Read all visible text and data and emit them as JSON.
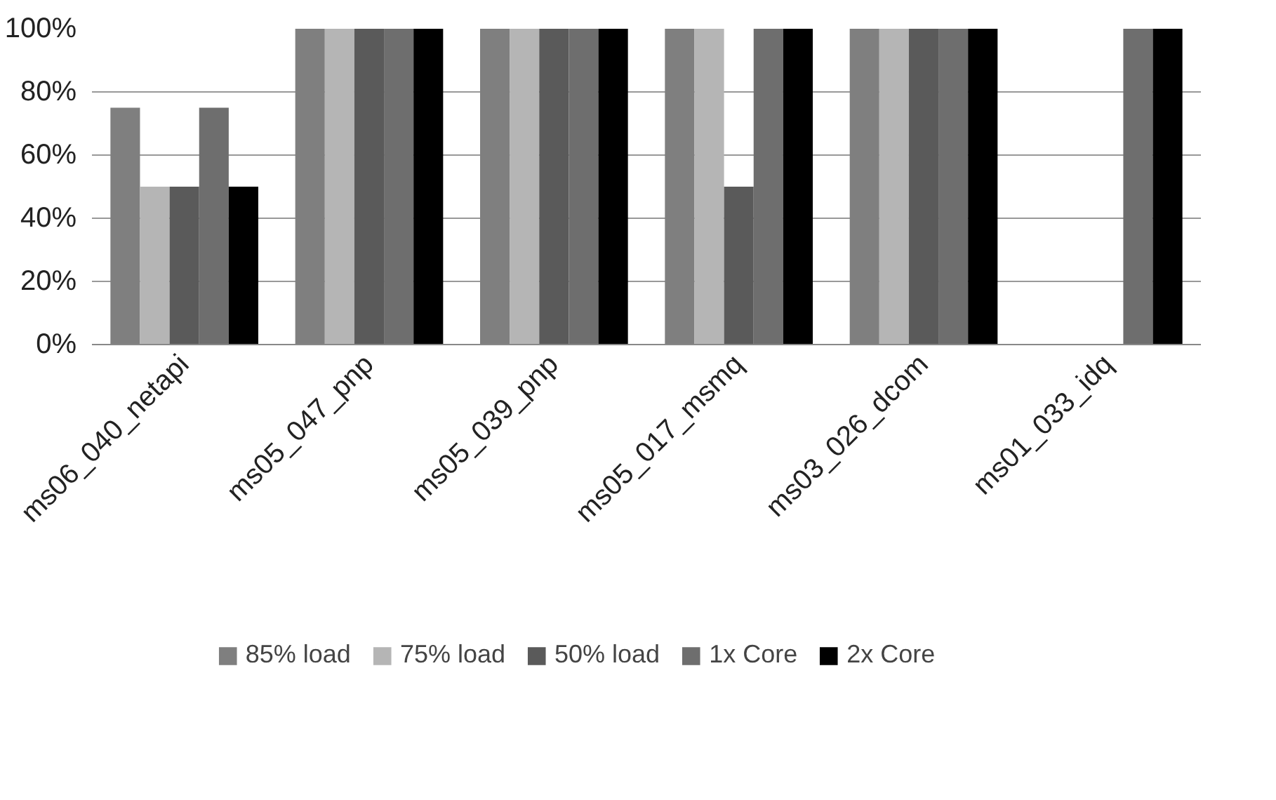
{
  "chart_data": {
    "type": "bar",
    "categories": [
      "ms06_040_netapi",
      "ms05_047_pnp",
      "ms05_039_pnp",
      "ms05_017_msmq",
      "ms03_026_dcom",
      "ms01_033_idq"
    ],
    "series": [
      {
        "name": "85% load",
        "color": "#7f7f7f",
        "values": [
          75,
          100,
          100,
          100,
          100,
          0
        ]
      },
      {
        "name": "75% load",
        "color": "#b5b5b5",
        "values": [
          50,
          100,
          100,
          100,
          100,
          0
        ]
      },
      {
        "name": "50% load",
        "color": "#5a5a5a",
        "values": [
          50,
          100,
          100,
          50,
          100,
          0
        ]
      },
      {
        "name": "1x Core",
        "color": "#6e6e6e",
        "values": [
          75,
          100,
          100,
          100,
          100,
          100
        ]
      },
      {
        "name": "2x Core",
        "color": "#000000",
        "values": [
          50,
          100,
          100,
          100,
          100,
          100
        ]
      }
    ],
    "ylim": [
      0,
      100
    ],
    "yticks": [
      {
        "value": 0,
        "label": "0%"
      },
      {
        "value": 20,
        "label": "20%"
      },
      {
        "value": 40,
        "label": "40%"
      },
      {
        "value": 60,
        "label": "60%"
      },
      {
        "value": 80,
        "label": "80%"
      },
      {
        "value": 100,
        "label": "100%"
      }
    ],
    "grid": "y",
    "legend": "bottom"
  }
}
